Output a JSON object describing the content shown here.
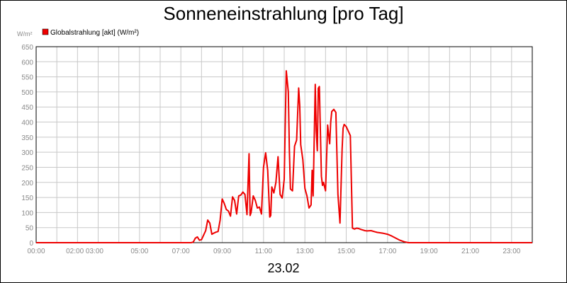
{
  "chart_data": {
    "type": "line",
    "title": "Sonneneinstrahlung [pro Tag]",
    "date": "23.02",
    "ylabel": "W/m²",
    "legend": {
      "label": "Globalstrahlung [akt] (W/m²)",
      "placement": "top-left"
    },
    "series_color": "#ee0000",
    "grid": true,
    "xlim": [
      0,
      24
    ],
    "ylim": [
      0,
      650
    ],
    "yticks": [
      0,
      50,
      100,
      150,
      200,
      250,
      300,
      350,
      400,
      450,
      500,
      550,
      600,
      650
    ],
    "xticks": [
      {
        "x": 0,
        "label": "00:00"
      },
      {
        "x": 2.35,
        "label": "02:00 03:00"
      },
      {
        "x": 5,
        "label": "05:00"
      },
      {
        "x": 7,
        "label": "07:00"
      },
      {
        "x": 9,
        "label": "09:00"
      },
      {
        "x": 11,
        "label": "11:00"
      },
      {
        "x": 13,
        "label": "13:00"
      },
      {
        "x": 15,
        "label": "15:00"
      },
      {
        "x": 17,
        "label": "17:00"
      },
      {
        "x": 19,
        "label": "19:00"
      },
      {
        "x": 21,
        "label": "21:00"
      },
      {
        "x": 23,
        "label": "23:00"
      }
    ],
    "x": [
      0,
      7.5,
      7.6,
      7.7,
      7.8,
      7.9,
      8.0,
      8.1,
      8.2,
      8.3,
      8.4,
      8.5,
      8.6,
      8.7,
      8.8,
      8.9,
      9.0,
      9.1,
      9.2,
      9.3,
      9.4,
      9.5,
      9.6,
      9.7,
      9.8,
      9.9,
      10.0,
      10.1,
      10.2,
      10.3,
      10.35,
      10.4,
      10.5,
      10.6,
      10.7,
      10.8,
      10.9,
      11.0,
      11.05,
      11.1,
      11.2,
      11.3,
      11.35,
      11.4,
      11.5,
      11.6,
      11.7,
      11.8,
      11.9,
      12.0,
      12.1,
      12.2,
      12.25,
      12.3,
      12.4,
      12.5,
      12.6,
      12.7,
      12.75,
      12.8,
      12.9,
      13.0,
      13.1,
      13.2,
      13.3,
      13.35,
      13.4,
      13.5,
      13.55,
      13.6,
      13.65,
      13.7,
      13.8,
      13.85,
      13.9,
      14.0,
      14.1,
      14.2,
      14.25,
      14.3,
      14.4,
      14.5,
      14.6,
      14.7,
      14.8,
      14.85,
      14.9,
      15.0,
      15.1,
      15.2,
      15.3,
      15.4,
      15.5,
      15.6,
      15.7,
      15.8,
      15.9,
      16.0,
      16.2,
      16.4,
      16.5,
      16.6,
      16.8,
      17.0,
      17.2,
      17.4,
      17.6,
      17.8,
      18.0,
      18.3,
      24
    ],
    "y": [
      0,
      0,
      2,
      15,
      19,
      8,
      10,
      25,
      40,
      75,
      65,
      28,
      32,
      35,
      37,
      75,
      145,
      130,
      110,
      105,
      88,
      152,
      140,
      95,
      155,
      158,
      168,
      160,
      93,
      295,
      90,
      100,
      155,
      140,
      115,
      118,
      95,
      250,
      275,
      298,
      240,
      85,
      90,
      185,
      165,
      200,
      285,
      160,
      148,
      210,
      570,
      500,
      305,
      178,
      172,
      320,
      340,
      513,
      455,
      325,
      275,
      180,
      155,
      115,
      125,
      240,
      155,
      525,
      370,
      305,
      512,
      518,
      220,
      190,
      200,
      172,
      390,
      328,
      400,
      435,
      442,
      432,
      160,
      65,
      310,
      380,
      392,
      385,
      370,
      355,
      48,
      45,
      48,
      47,
      44,
      42,
      40,
      39,
      40,
      36,
      34,
      33,
      31,
      28,
      22,
      15,
      8,
      3,
      0,
      0,
      0
    ]
  }
}
